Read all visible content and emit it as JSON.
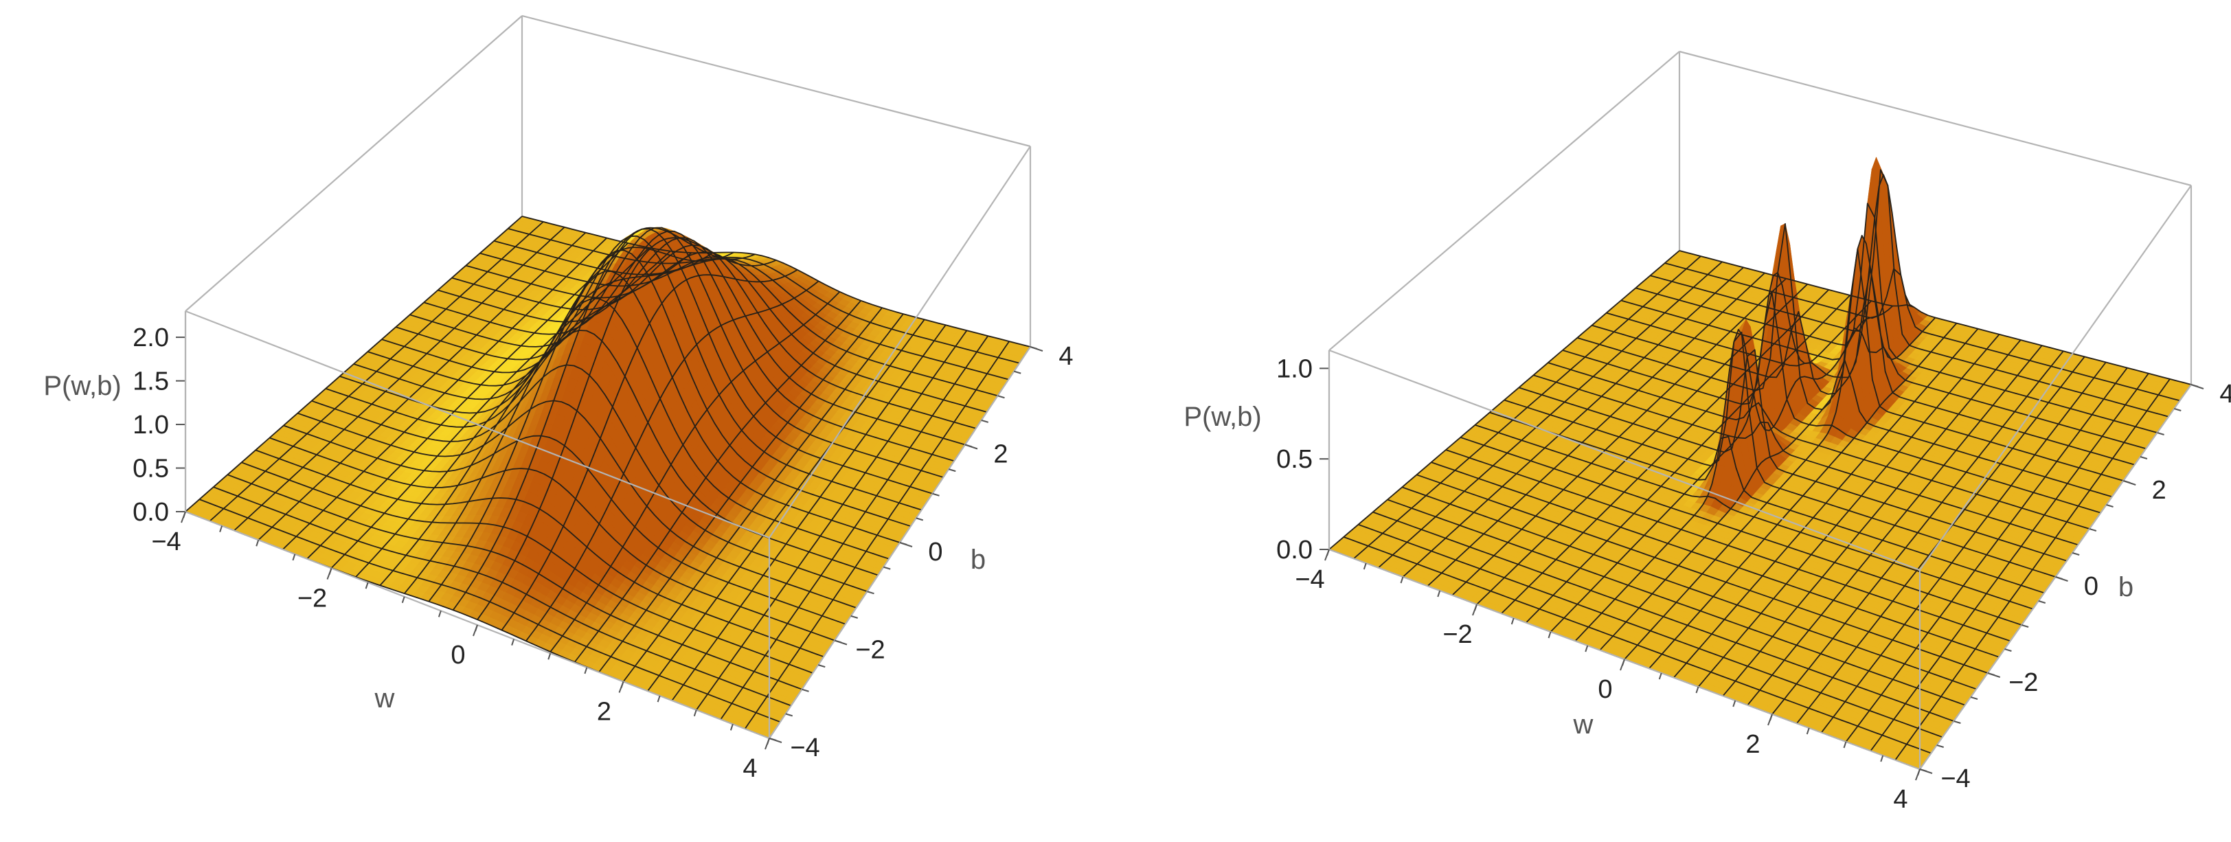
{
  "chart_data": [
    {
      "type": "surface3d",
      "x_label": "w",
      "y_label": "b",
      "z_label": "P(w,b)",
      "x_range": [
        -4,
        4
      ],
      "y_range": [
        -4,
        4
      ],
      "z_range": [
        0,
        2.3
      ],
      "x_ticks": [
        "−4",
        "−2",
        "0",
        "2",
        "4"
      ],
      "y_ticks": [
        "−4",
        "−2",
        "0",
        "2",
        "4"
      ],
      "z_ticks": [
        "0.0",
        "0.5",
        "1.0",
        "1.5",
        "2.0"
      ],
      "x_tick_values": [
        -4,
        -2,
        0,
        2,
        4
      ],
      "y_tick_values": [
        -4,
        -2,
        0,
        2,
        4
      ],
      "z_tick_values": [
        0,
        0.5,
        1,
        1.5,
        2
      ],
      "mesh_divisions": 24,
      "colors": {
        "surface_light": "#ffe82a",
        "surface_dark": "#c25a0a",
        "mesh": "#262018",
        "box": "#b4b4b4"
      },
      "peaks": [
        {
          "w": -0.2,
          "b": 0.5,
          "sigma_w": 0.75,
          "sigma_b": 1.7,
          "height": 2.12
        }
      ]
    },
    {
      "type": "surface3d",
      "x_label": "w",
      "y_label": "b",
      "z_label": "P(w,b)",
      "x_range": [
        -4,
        4
      ],
      "y_range": [
        -4,
        4
      ],
      "z_range": [
        0,
        1.1
      ],
      "x_ticks": [
        "−4",
        "−2",
        "0",
        "2",
        "4"
      ],
      "y_ticks": [
        "−4",
        "−2",
        "0",
        "2",
        "4"
      ],
      "z_ticks": [
        "0.0",
        "0.5",
        "1.0"
      ],
      "x_tick_values": [
        -4,
        -2,
        0,
        2,
        4
      ],
      "y_tick_values": [
        -4,
        -2,
        0,
        2,
        4
      ],
      "z_tick_values": [
        0,
        0.5,
        1
      ],
      "mesh_divisions": 24,
      "colors": {
        "surface_light": "#ffe82a",
        "surface_dark": "#c25a0a",
        "mesh": "#262018",
        "box": "#b4b4b4"
      },
      "peaks": [
        {
          "w": -0.6,
          "b": 0.1,
          "sigma_w": 0.12,
          "sigma_b": 0.3,
          "height": 0.9
        },
        {
          "w": -0.9,
          "b": 1.6,
          "sigma_w": 0.12,
          "sigma_b": 0.3,
          "height": 1.0
        },
        {
          "w": 0.0,
          "b": 2.1,
          "sigma_w": 0.12,
          "sigma_b": 0.3,
          "height": 0.9
        },
        {
          "w": -0.4,
          "b": 3.2,
          "sigma_w": 0.12,
          "sigma_b": 0.3,
          "height": 1.1
        }
      ]
    }
  ]
}
